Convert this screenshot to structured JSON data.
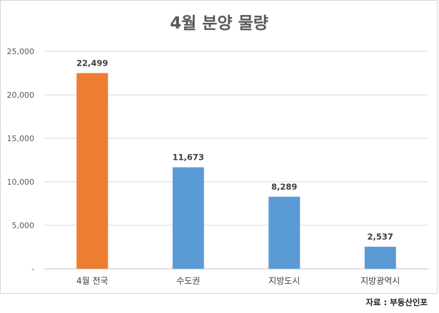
{
  "chart_data": {
    "type": "bar",
    "title": "4월 분양 물량",
    "xlabel": "",
    "ylabel": "",
    "categories": [
      "4월 전국",
      "수도권",
      "지방도시",
      "지방광역시"
    ],
    "values": [
      22499,
      11673,
      8289,
      2537
    ],
    "value_labels": [
      "22,499",
      "11,673",
      "8,289",
      "2,537"
    ],
    "bar_colors": [
      "#ED7D31",
      "#5B9BD5",
      "#5B9BD5",
      "#5B9BD5"
    ],
    "ylim": [
      0,
      25000
    ],
    "y_ticks": [
      0,
      5000,
      10000,
      15000,
      20000,
      25000
    ],
    "y_tick_labels": [
      "-",
      "5,000",
      "10,000",
      "15,000",
      "20,000",
      "25,000"
    ],
    "grid": true,
    "legend": "none"
  },
  "source": "자료 : 부동산인포"
}
